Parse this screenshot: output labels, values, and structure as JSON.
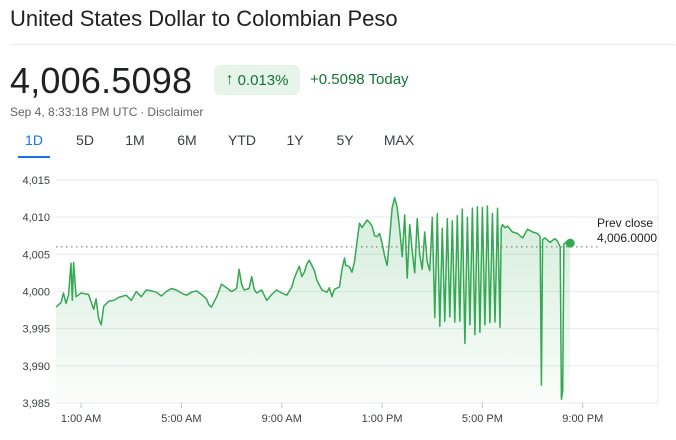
{
  "header": {
    "title": "United States Dollar to Colombian Peso",
    "price": "4,006.5098",
    "change_percent": "0.013%",
    "change_arrow": "↑",
    "change_today": "+0.5098 Today",
    "timestamp": "Sep 4, 8:33:18 PM UTC",
    "separator": "·",
    "disclaimer": "Disclaimer"
  },
  "tabs": [
    {
      "label": "1D",
      "active": true
    },
    {
      "label": "5D",
      "active": false
    },
    {
      "label": "1M",
      "active": false
    },
    {
      "label": "6M",
      "active": false
    },
    {
      "label": "YTD",
      "active": false
    },
    {
      "label": "1Y",
      "active": false
    },
    {
      "label": "5Y",
      "active": false
    },
    {
      "label": "MAX",
      "active": false
    }
  ],
  "colors": {
    "line": "#34a853",
    "text_positive": "#137333",
    "badge_bg": "#e6f4ea",
    "accent": "#1a73e8",
    "grid": "#e8eaed",
    "axis_text": "#3c4043"
  },
  "chart_data": {
    "type": "line",
    "title": "",
    "xlabel": "",
    "ylabel": "",
    "x_unit": "hours after midnight (local)",
    "xlim": [
      0,
      24
    ],
    "ylim": [
      3985,
      4015
    ],
    "y_ticks": [
      3985,
      3990,
      3995,
      4000,
      4005,
      4010,
      4015
    ],
    "y_tick_labels": [
      "3,985",
      "3,990",
      "3,995",
      "4,000",
      "4,005",
      "4,010",
      "4,015"
    ],
    "x_ticks": [
      1,
      5,
      9,
      13,
      17,
      21
    ],
    "x_tick_labels": [
      "1:00 AM",
      "5:00 AM",
      "9:00 AM",
      "1:00 PM",
      "5:00 PM",
      "9:00 PM"
    ],
    "grid": true,
    "prev_close": 4006.0,
    "prev_close_label": "Prev close",
    "prev_close_value": "4,006.0000",
    "last_point": [
      20.5,
      4006.5
    ],
    "series": [
      {
        "points": [
          [
            0,
            3997.9
          ],
          [
            0.2,
            3998.5
          ],
          [
            0.3,
            3999.8
          ],
          [
            0.4,
            3998.4
          ],
          [
            0.5,
            3999.5
          ],
          [
            0.6,
            4003.8
          ],
          [
            0.65,
            3998.8
          ],
          [
            0.7,
            4003.9
          ],
          [
            0.8,
            3999.3
          ],
          [
            1.0,
            3999.8
          ],
          [
            1.3,
            3999.6
          ],
          [
            1.5,
            3997.6
          ],
          [
            1.6,
            3999.0
          ],
          [
            1.7,
            3996.4
          ],
          [
            1.8,
            3995.5
          ],
          [
            1.9,
            3998.0
          ],
          [
            2.1,
            3998.7
          ],
          [
            2.3,
            3998.8
          ],
          [
            2.5,
            3999.2
          ],
          [
            2.8,
            3999.5
          ],
          [
            3.0,
            3998.8
          ],
          [
            3.2,
            4000.0
          ],
          [
            3.4,
            3999.3
          ],
          [
            3.6,
            4000.2
          ],
          [
            3.8,
            4000.1
          ],
          [
            4.0,
            3999.9
          ],
          [
            4.2,
            3999.4
          ],
          [
            4.4,
            4000.0
          ],
          [
            4.6,
            4000.4
          ],
          [
            4.8,
            4000.2
          ],
          [
            5.0,
            3999.8
          ],
          [
            5.2,
            3999.5
          ],
          [
            5.4,
            3999.9
          ],
          [
            5.6,
            4000.1
          ],
          [
            5.8,
            3999.6
          ],
          [
            6.0,
            3999.0
          ],
          [
            6.1,
            3998.2
          ],
          [
            6.2,
            3997.9
          ],
          [
            6.3,
            3998.6
          ],
          [
            6.4,
            3999.2
          ],
          [
            6.6,
            4001.0
          ],
          [
            6.8,
            4000.5
          ],
          [
            7.0,
            4000.0
          ],
          [
            7.2,
            4000.4
          ],
          [
            7.3,
            4003.0
          ],
          [
            7.4,
            4001.0
          ],
          [
            7.5,
            4000.2
          ],
          [
            7.7,
            4000.4
          ],
          [
            7.8,
            4002.0
          ],
          [
            7.9,
            4000.3
          ],
          [
            8.0,
            3999.8
          ],
          [
            8.2,
            4000.2
          ],
          [
            8.3,
            3999.5
          ],
          [
            8.4,
            3998.8
          ],
          [
            8.6,
            3999.6
          ],
          [
            8.8,
            4000.2
          ],
          [
            9.0,
            3999.8
          ],
          [
            9.2,
            3999.5
          ],
          [
            9.4,
            4000.6
          ],
          [
            9.5,
            4001.8
          ],
          [
            9.7,
            4003.4
          ],
          [
            9.8,
            4002.0
          ],
          [
            9.9,
            4002.6
          ],
          [
            10.0,
            4003.7
          ],
          [
            10.1,
            4004.2
          ],
          [
            10.2,
            4003.5
          ],
          [
            10.3,
            4002.8
          ],
          [
            10.4,
            4001.5
          ],
          [
            10.6,
            4000.2
          ],
          [
            10.8,
            3999.9
          ],
          [
            10.9,
            4000.5
          ],
          [
            11.0,
            3999.3
          ],
          [
            11.1,
            4000.3
          ],
          [
            11.3,
            4000.6
          ],
          [
            11.4,
            4003.0
          ],
          [
            11.5,
            4004.5
          ],
          [
            11.55,
            4003.5
          ],
          [
            11.6,
            4003.5
          ],
          [
            11.7,
            4003.3
          ],
          [
            11.8,
            4002.6
          ],
          [
            11.9,
            4004.0
          ],
          [
            12.0,
            4006.7
          ],
          [
            12.1,
            4009.2
          ],
          [
            12.2,
            4008.6
          ],
          [
            12.4,
            4009.6
          ],
          [
            12.5,
            4009.3
          ],
          [
            12.6,
            4008.8
          ],
          [
            12.7,
            4007.5
          ],
          [
            12.8,
            4007.4
          ],
          [
            12.9,
            4007.8
          ],
          [
            13.0,
            4006.5
          ],
          [
            13.1,
            4004.8
          ],
          [
            13.2,
            4003.5
          ],
          [
            13.3,
            4007.2
          ],
          [
            13.4,
            4011.2
          ],
          [
            13.5,
            4012.6
          ],
          [
            13.6,
            4011.4
          ],
          [
            13.7,
            4008.5
          ],
          [
            13.8,
            4004.7
          ],
          [
            13.9,
            4010.3
          ],
          [
            14.0,
            4001.8
          ],
          [
            14.1,
            4009.0
          ],
          [
            14.2,
            4005.5
          ],
          [
            14.3,
            4002.5
          ],
          [
            14.4,
            4009.8
          ],
          [
            14.5,
            4005.0
          ],
          [
            14.6,
            4003.0
          ],
          [
            14.7,
            4008.0
          ],
          [
            14.8,
            4004.0
          ],
          [
            14.9,
            4002.8
          ],
          [
            15.0,
            4010.0
          ],
          [
            15.1,
            3996.5
          ],
          [
            15.2,
            4010.5
          ],
          [
            15.3,
            3995.3
          ],
          [
            15.4,
            4008.5
          ],
          [
            15.5,
            3996.0
          ],
          [
            15.6,
            4009.8
          ],
          [
            15.7,
            3996.6
          ],
          [
            15.8,
            4009.5
          ],
          [
            15.9,
            3995.9
          ],
          [
            16.0,
            4010.2
          ],
          [
            16.1,
            3996.0
          ],
          [
            16.2,
            4011.1
          ],
          [
            16.3,
            3993.0
          ],
          [
            16.4,
            4010.0
          ],
          [
            16.5,
            3995.5
          ],
          [
            16.6,
            4011.2
          ],
          [
            16.7,
            3994.2
          ],
          [
            16.8,
            4011.4
          ],
          [
            16.9,
            3994.5
          ],
          [
            17.0,
            4011.3
          ],
          [
            17.1,
            3995.5
          ],
          [
            17.2,
            4011.5
          ],
          [
            17.3,
            3995.8
          ],
          [
            17.4,
            4010.5
          ],
          [
            17.5,
            3995.9
          ],
          [
            17.6,
            4011.2
          ],
          [
            17.7,
            3995.2
          ],
          [
            17.75,
            4008.5
          ],
          [
            17.8,
            4009.0
          ],
          [
            17.9,
            4008.6
          ],
          [
            18.0,
            4008.8
          ],
          [
            18.2,
            4008.0
          ],
          [
            18.4,
            4007.8
          ],
          [
            18.6,
            4007.2
          ],
          [
            18.8,
            4008.4
          ],
          [
            19.0,
            4008.0
          ],
          [
            19.2,
            4007.8
          ],
          [
            19.3,
            4007.4
          ],
          [
            19.35,
            3987.4
          ],
          [
            19.4,
            4007.0
          ],
          [
            19.5,
            4007.2
          ],
          [
            19.7,
            4006.6
          ],
          [
            19.8,
            4006.9
          ],
          [
            19.9,
            4007.1
          ],
          [
            20.0,
            4006.7
          ],
          [
            20.1,
            4006.0
          ],
          [
            20.15,
            3985.5
          ],
          [
            20.2,
            3986.6
          ],
          [
            20.25,
            4006.4
          ],
          [
            20.4,
            4006.8
          ],
          [
            20.5,
            4006.5
          ]
        ]
      }
    ]
  }
}
